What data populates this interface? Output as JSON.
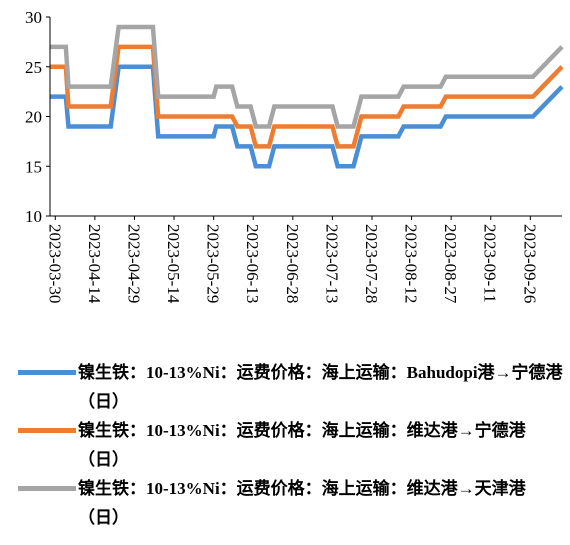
{
  "chart_data": {
    "type": "line",
    "x": [
      "2023-03-28",
      "2023-04-03",
      "2023-04-04",
      "2023-04-20",
      "2023-04-23",
      "2023-05-06",
      "2023-05-08",
      "2023-05-29",
      "2023-05-30",
      "2023-06-05",
      "2023-06-07",
      "2023-06-12",
      "2023-06-14",
      "2023-06-19",
      "2023-06-21",
      "2023-07-13",
      "2023-07-15",
      "2023-07-21",
      "2023-07-24",
      "2023-08-07",
      "2023-08-09",
      "2023-08-23",
      "2023-08-25",
      "2023-09-27",
      "2023-10-08"
    ],
    "series": [
      {
        "name": "镍生铁：10-13%Ni：运费价格：海上运输：Bahudopi港→宁德港（日）",
        "color": "#4a8fd6",
        "values": [
          22,
          22,
          19,
          19,
          25,
          25,
          18,
          18,
          19,
          19,
          17,
          17,
          15,
          15,
          17,
          17,
          15,
          15,
          18,
          18,
          19,
          19,
          20,
          20,
          23
        ]
      },
      {
        "name": "镍生铁：10-13%Ni：运费价格：海上运输：维达港→宁德港（日）",
        "color": "#ee7d31",
        "values": [
          25,
          25,
          21,
          21,
          27,
          27,
          20,
          20,
          20,
          20,
          19,
          19,
          17,
          17,
          19,
          19,
          17,
          17,
          20,
          20,
          21,
          21,
          22,
          22,
          25
        ]
      },
      {
        "name": "镍生铁：10-13%Ni：运费价格：海上运输：维达港→天津港（日）",
        "color": "#a5a5a5",
        "values": [
          27,
          27,
          23,
          23,
          29,
          29,
          22,
          22,
          23,
          23,
          21,
          21,
          19,
          19,
          21,
          21,
          19,
          19,
          22,
          22,
          23,
          23,
          24,
          24,
          27
        ]
      }
    ],
    "xlim": [
      "2023-03-28",
      "2023-10-08"
    ],
    "xticks": [
      "2023-03-30",
      "2023-04-14",
      "2023-04-29",
      "2023-05-14",
      "2023-05-29",
      "2023-06-13",
      "2023-06-28",
      "2023-07-13",
      "2023-07-28",
      "2023-08-12",
      "2023-08-27",
      "2023-09-11",
      "2023-09-26"
    ],
    "ylim": [
      10,
      30
    ],
    "yticks": [
      10,
      15,
      20,
      25,
      30
    ],
    "grid": false
  }
}
